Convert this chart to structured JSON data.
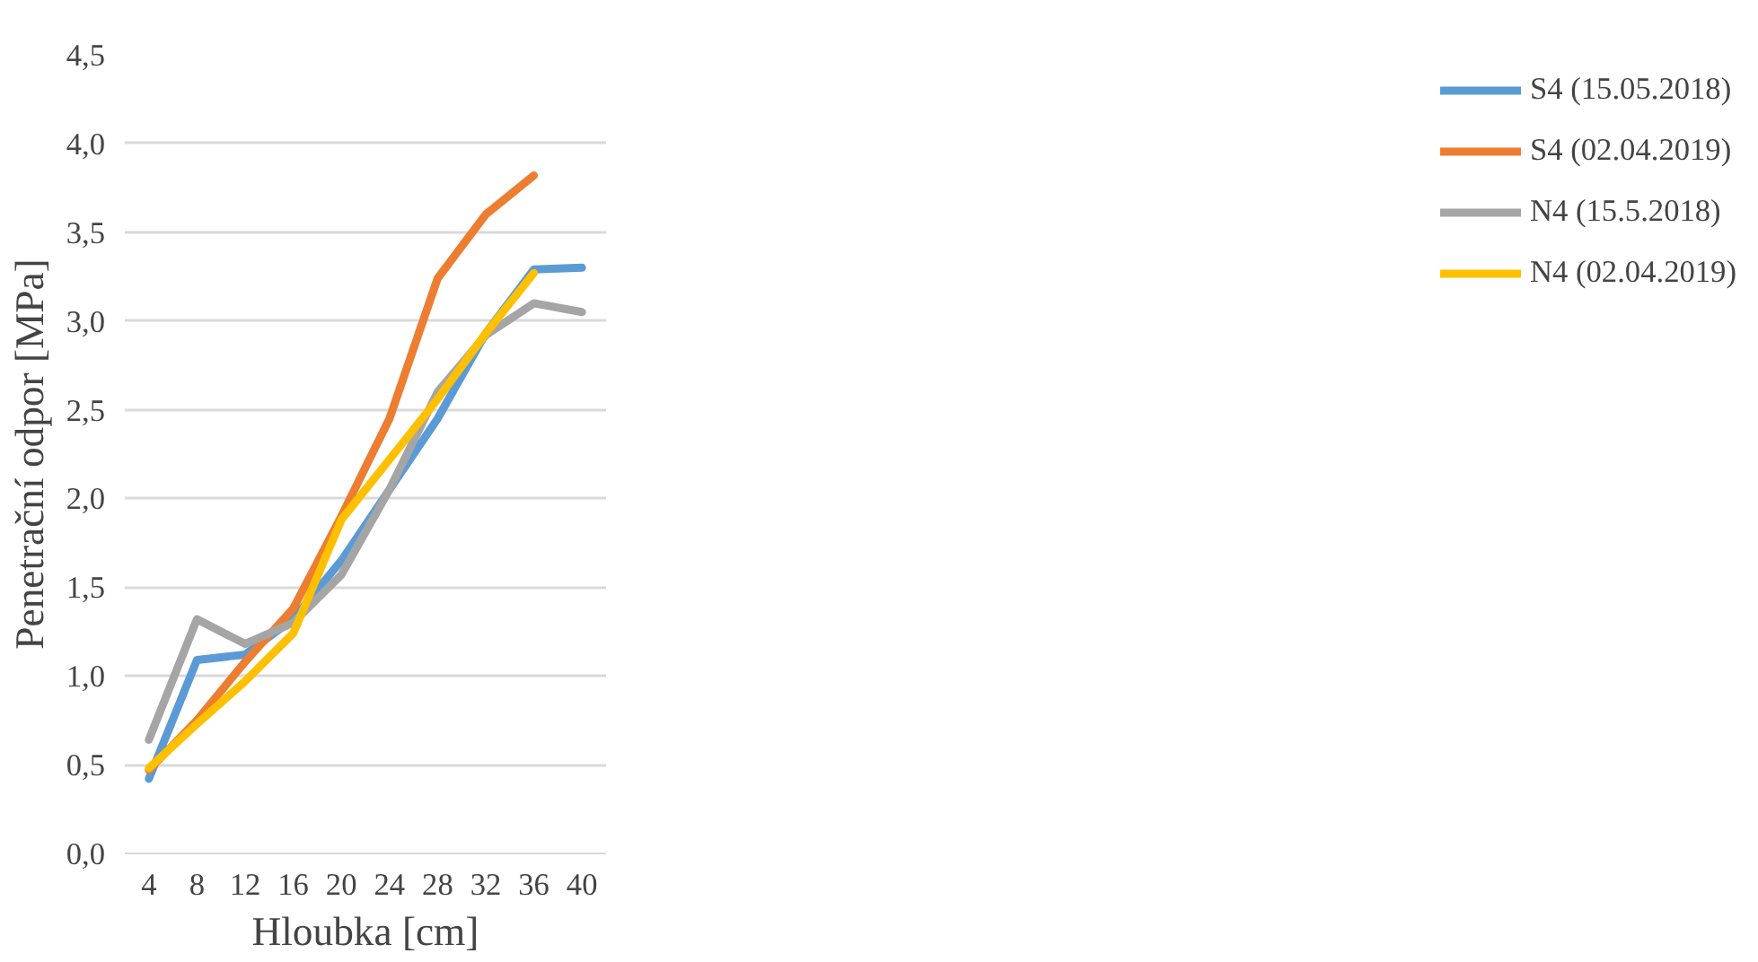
{
  "chart_data": {
    "type": "line",
    "xlabel": "Hloubka [cm]",
    "ylabel": "Penetrační odpor [MPa]",
    "categories": [
      "4",
      "8",
      "12",
      "16",
      "20",
      "24",
      "28",
      "32",
      "36",
      "40"
    ],
    "ylim": [
      0,
      4.5
    ],
    "yticks": [
      {
        "value": 0,
        "label": "0,0"
      },
      {
        "value": 0.5,
        "label": "0,5"
      },
      {
        "value": 1,
        "label": "1,0"
      },
      {
        "value": 1.5,
        "label": "1,5"
      },
      {
        "value": 2,
        "label": "2,0"
      },
      {
        "value": 2.5,
        "label": "2,5"
      },
      {
        "value": 3,
        "label": "3,0"
      },
      {
        "value": 3.5,
        "label": "3,5"
      },
      {
        "value": 4,
        "label": "4,0"
      },
      {
        "value": 4.5,
        "label": "4,5"
      }
    ],
    "grid": "y",
    "legend": "right",
    "marker": "none",
    "line_style": "solid",
    "series": [
      {
        "name": "S4 (15.05.2018)",
        "color": "#5b9bd5",
        "values": [
          0.42,
          1.09,
          1.12,
          1.32,
          1.65,
          2.05,
          2.45,
          2.93,
          3.29,
          3.3
        ]
      },
      {
        "name": "S4 (02.04.2019)",
        "color": "#ed7d31",
        "values": [
          0.47,
          0.75,
          1.08,
          1.38,
          1.9,
          2.45,
          3.24,
          3.6,
          3.82,
          null
        ]
      },
      {
        "name": "N4 (15.5.2018)",
        "color": "#a5a5a5",
        "values": [
          0.64,
          1.32,
          1.18,
          1.3,
          1.57,
          2.05,
          2.6,
          2.92,
          3.1,
          3.05
        ]
      },
      {
        "name": "N4 (02.04.2019)",
        "color": "#ffc000",
        "values": [
          0.48,
          0.73,
          0.97,
          1.24,
          1.88,
          2.22,
          2.56,
          2.93,
          3.27,
          null
        ]
      }
    ]
  }
}
